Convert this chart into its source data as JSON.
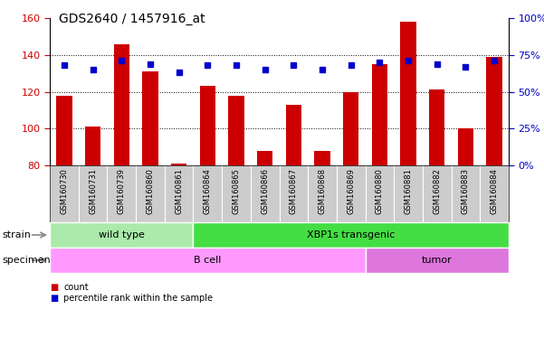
{
  "title": "GDS2640 / 1457916_at",
  "samples": [
    "GSM160730",
    "GSM160731",
    "GSM160739",
    "GSM160860",
    "GSM160861",
    "GSM160864",
    "GSM160865",
    "GSM160866",
    "GSM160867",
    "GSM160868",
    "GSM160869",
    "GSM160880",
    "GSM160881",
    "GSM160882",
    "GSM160883",
    "GSM160884"
  ],
  "counts": [
    118,
    101,
    146,
    131,
    81,
    123,
    118,
    88,
    113,
    88,
    120,
    135,
    158,
    121,
    100,
    139
  ],
  "percentiles": [
    68,
    65,
    71,
    69,
    63,
    68,
    68,
    65,
    68,
    65,
    68,
    70,
    71,
    69,
    67,
    71
  ],
  "ylim_left": [
    80,
    160
  ],
  "ylim_right": [
    0,
    100
  ],
  "yticks_left": [
    80,
    100,
    120,
    140,
    160
  ],
  "yticks_right": [
    0,
    25,
    50,
    75,
    100
  ],
  "ytick_labels_right": [
    "0%",
    "25%",
    "50%",
    "75%",
    "100%"
  ],
  "bar_color": "#cc0000",
  "dot_color": "#0000cc",
  "strain_groups": [
    {
      "label": "wild type",
      "start": 0,
      "end": 5,
      "color": "#aaeaaa"
    },
    {
      "label": "XBP1s transgenic",
      "start": 5,
      "end": 16,
      "color": "#44dd44"
    }
  ],
  "specimen_groups": [
    {
      "label": "B cell",
      "start": 0,
      "end": 11,
      "color": "#ff99ff"
    },
    {
      "label": "tumor",
      "start": 11,
      "end": 16,
      "color": "#dd77dd"
    }
  ],
  "legend_items": [
    {
      "label": "count",
      "color": "#cc0000"
    },
    {
      "label": "percentile rank within the sample",
      "color": "#0000cc"
    }
  ],
  "strain_label": "strain",
  "specimen_label": "specimen",
  "bar_bottom": 80,
  "figsize": [
    6.01,
    3.84
  ],
  "dpi": 100
}
